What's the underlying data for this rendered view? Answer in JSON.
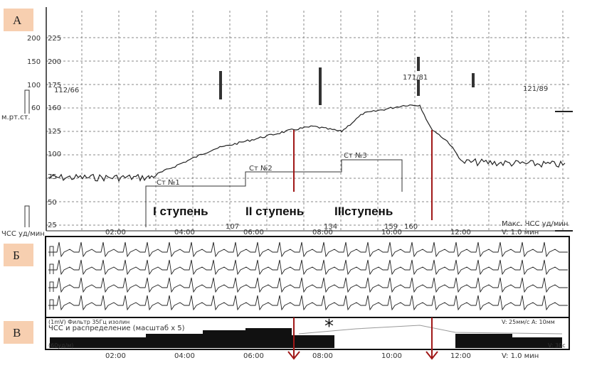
{
  "panels": {
    "a": "А",
    "b": "Б",
    "c": "В"
  },
  "axis_a": {
    "left_ticks": [
      "200",
      "150",
      "100",
      "60"
    ],
    "right_ticks": [
      "225",
      "200",
      "175",
      "160",
      "125",
      "100",
      "75",
      "50",
      "25"
    ],
    "unit_bp": "м.рт.ст.",
    "unit_hr": "ЧСС уд/мин"
  },
  "bp_readings": [
    "112/66",
    "171/81",
    "121/89"
  ],
  "stages_markers": [
    "Ст №1",
    "Ст №2",
    "Ст №3"
  ],
  "stages": [
    "I ступень",
    "II ступень",
    "IIIступень"
  ],
  "time_labels": [
    "02:00",
    "04:00",
    "06:00",
    "08:00",
    "10:00",
    "12:00"
  ],
  "hr_values": [
    "107",
    "134",
    "159",
    "160"
  ],
  "max_hr": "Макс. ЧСС уд/мин",
  "speed_a": "V: 1.0 мин",
  "panel_c": {
    "filter": "(1mV) Фильтр 35Гц изолин",
    "title": "ЧСС и распределение (масштаб x 5)",
    "speed": "V: 25мм/с A: 10мм",
    "scale": "(60уд/м)",
    "v30": "V: 30с",
    "star": "*",
    "speed_min": "V: 1.0 мин"
  }
}
